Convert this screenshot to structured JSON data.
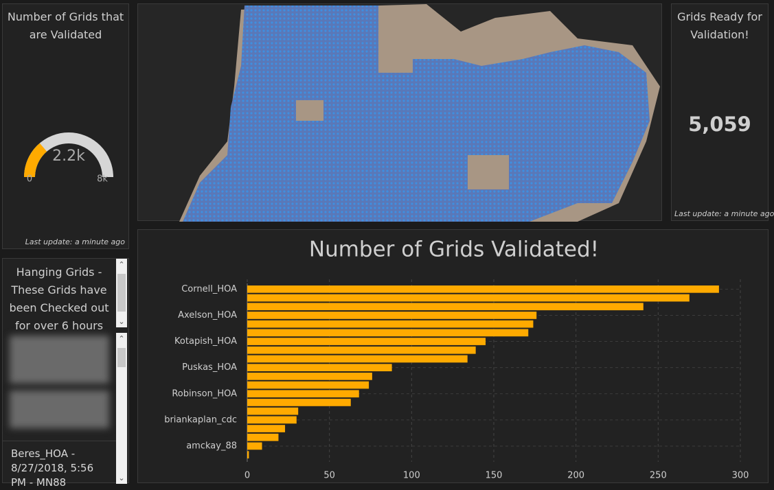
{
  "gauge_panel": {
    "title": "Number of Grids that are Validated",
    "last_update": "Last update: a minute ago",
    "gauge": {
      "value": 2200,
      "value_label": "2.2k",
      "min": 0,
      "max": 8000,
      "max_label": "8k"
    }
  },
  "indicator_panel": {
    "title": "Grids Ready for Validation!",
    "value": "5,059",
    "last_update": "Last update: a minute ago"
  },
  "list_panel": {
    "title": "Hanging Grids - These Grids have been Checked out for over 6 hours",
    "items": [
      "Beres_HOA - 8/27/2018, 5:56 PM - MN88"
    ]
  },
  "chart_data": {
    "type": "bar",
    "orientation": "horizontal",
    "title": "Number of Grids Validated!",
    "categories": [
      "Cornell_HOA",
      null,
      null,
      "Axelson_HOA",
      null,
      null,
      "Kotapish_HOA",
      null,
      null,
      "Puskas_HOA",
      null,
      null,
      "Robinson_HOA",
      null,
      null,
      "briankaplan_cdc",
      null,
      null,
      "amckay_88",
      null
    ],
    "values": [
      287,
      269,
      241,
      176,
      174,
      171,
      145,
      139,
      134,
      88,
      76,
      74,
      68,
      63,
      31,
      30,
      23,
      19,
      9,
      1
    ],
    "color": "#ffaa00",
    "xlim": [
      0,
      300
    ],
    "xticks": [
      0,
      50,
      100,
      150,
      200,
      250,
      300
    ],
    "grid": true
  }
}
